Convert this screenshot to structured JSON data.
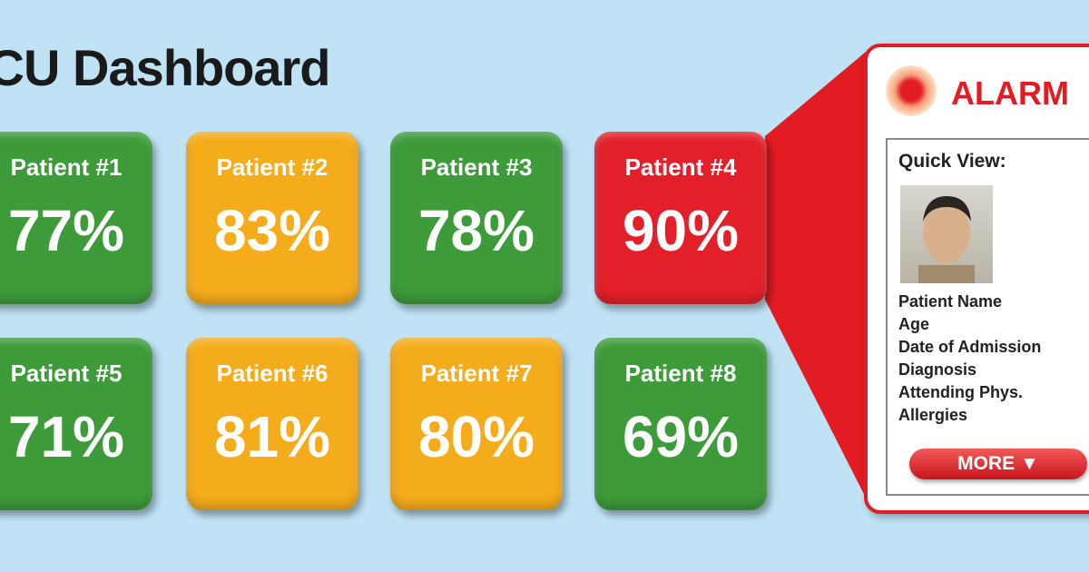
{
  "header": {
    "title": "ICU Dashboard"
  },
  "tiles": [
    {
      "name": "Patient #1",
      "value": "77%",
      "color": "#3d9b3a"
    },
    {
      "name": "Patient #2",
      "value": "83%",
      "color": "#f5ac1b"
    },
    {
      "name": "Patient #3",
      "value": "78%",
      "color": "#3d9b3a"
    },
    {
      "name": "Patient #4",
      "value": "90%",
      "color": "#e3202a"
    },
    {
      "name": "Patient #5",
      "value": "71%",
      "color": "#3d9b3a"
    },
    {
      "name": "Patient #6",
      "value": "81%",
      "color": "#f5ac1b"
    },
    {
      "name": "Patient #7",
      "value": "80%",
      "color": "#f5ac1b"
    },
    {
      "name": "Patient #8",
      "value": "69%",
      "color": "#3d9b3a"
    }
  ],
  "alarm_card": {
    "title": "ALARM",
    "quick_view_title": "Quick View:",
    "fields": [
      "Patient Name",
      "Age",
      "Date of Admission",
      "Diagnosis",
      "Attending Phys.",
      "Allergies"
    ],
    "button": "MORE"
  }
}
